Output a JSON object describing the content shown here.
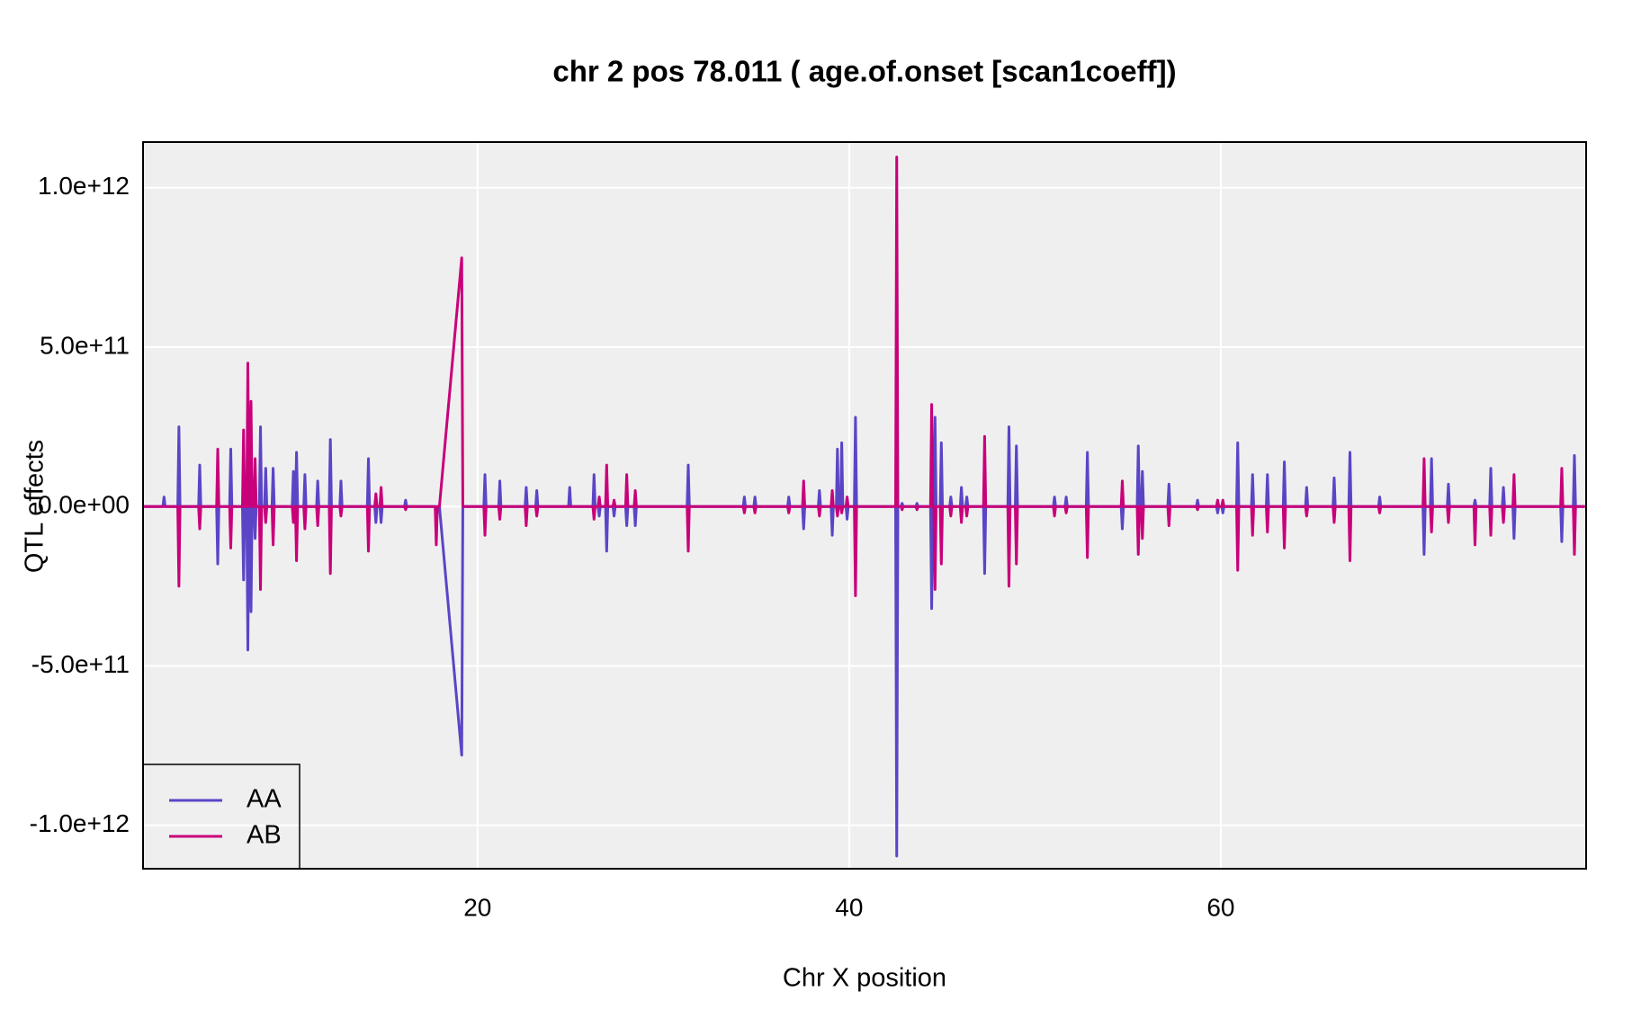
{
  "chart_data": {
    "type": "line",
    "title": "chr 2 pos 78.011 ( age.of.onset  [scan1coeff])",
    "xlabel": "Chr X position",
    "ylabel": "QTL effects",
    "xlim": [
      2,
      79.66
    ],
    "ylim": [
      -1136000000000.0,
      1143000000000.0
    ],
    "xticks": [
      20,
      40,
      60
    ],
    "yticks": [
      {
        "value": 1000000000000.0,
        "label": "1.0e+12"
      },
      {
        "value": 500000000000.0,
        "label": "5.0e+11"
      },
      {
        "value": 0,
        "label": "0.0e+00"
      },
      {
        "value": -500000000000.0,
        "label": "-5.0e+11"
      },
      {
        "value": -1000000000000.0,
        "label": "-1.0e+12"
      }
    ],
    "grid": true,
    "legend": "bottom-left",
    "x": [
      2.0,
      3.07,
      3.13,
      3.19,
      3.87,
      3.93,
      3.99,
      4.99,
      5.05,
      5.11,
      5.96,
      6.02,
      6.08,
      6.66,
      6.72,
      6.78,
      7.35,
      7.41,
      7.47,
      7.58,
      7.64,
      7.7,
      7.75,
      7.81,
      7.87,
      7.97,
      8.03,
      8.09,
      8.26,
      8.32,
      8.38,
      8.54,
      8.6,
      8.66,
      8.94,
      9.0,
      9.06,
      10.03,
      10.09,
      10.15,
      10.2,
      10.26,
      10.32,
      10.65,
      10.71,
      10.77,
      11.34,
      11.4,
      11.46,
      12.02,
      12.08,
      12.14,
      12.59,
      12.65,
      12.71,
      14.07,
      14.13,
      14.19,
      14.47,
      14.53,
      14.59,
      14.75,
      14.81,
      14.87,
      16.07,
      16.13,
      16.19,
      17.72,
      17.78,
      17.84,
      17.95,
      19.15,
      19.21,
      20.34,
      20.4,
      20.46,
      21.14,
      21.2,
      21.26,
      22.56,
      22.62,
      22.68,
      23.13,
      23.19,
      23.25,
      24.9,
      24.96,
      25.02,
      26.21,
      26.27,
      26.33,
      26.49,
      26.55,
      26.61,
      26.89,
      26.95,
      27.01,
      27.29,
      27.35,
      27.41,
      27.97,
      28.03,
      28.09,
      28.43,
      28.49,
      28.55,
      31.28,
      31.34,
      31.4,
      34.3,
      34.36,
      34.42,
      34.87,
      34.93,
      34.99,
      36.69,
      36.75,
      36.81,
      37.49,
      37.55,
      37.61,
      38.34,
      38.4,
      38.46,
      39.03,
      39.09,
      39.15,
      39.31,
      39.37,
      39.43,
      39.54,
      39.6,
      39.66,
      39.83,
      39.89,
      39.95,
      40.28,
      40.34,
      40.4,
      42.5,
      42.56,
      42.62,
      42.79,
      42.85,
      42.91,
      43.59,
      43.65,
      43.71,
      44.38,
      44.44,
      44.5,
      44.56,
      44.62,
      44.68,
      44.9,
      44.96,
      45.02,
      45.41,
      45.47,
      45.53,
      45.98,
      46.04,
      46.1,
      46.27,
      46.33,
      46.39,
      47.23,
      47.29,
      47.35,
      48.54,
      48.6,
      48.66,
      48.94,
      49.0,
      49.06,
      50.99,
      51.05,
      51.11,
      51.62,
      51.68,
      51.74,
      52.76,
      52.82,
      52.88,
      54.64,
      54.7,
      54.76,
      55.5,
      55.56,
      55.62,
      55.72,
      55.78,
      55.84,
      57.15,
      57.21,
      57.27,
      58.69,
      58.75,
      58.81,
      59.77,
      59.83,
      59.89,
      60.05,
      60.11,
      60.17,
      60.85,
      60.91,
      60.97,
      61.65,
      61.71,
      61.77,
      62.45,
      62.51,
      62.57,
      63.36,
      63.42,
      63.48,
      64.56,
      64.62,
      64.68,
      66.04,
      66.1,
      66.16,
      66.89,
      66.95,
      67.01,
      68.49,
      68.55,
      68.61,
      70.88,
      70.94,
      71.0,
      71.28,
      71.34,
      71.4,
      72.19,
      72.25,
      72.31,
      73.62,
      73.68,
      73.74,
      74.47,
      74.53,
      74.59,
      75.15,
      75.21,
      75.27,
      75.72,
      75.78,
      75.84,
      78.29,
      78.35,
      78.41,
      78.97,
      79.03,
      79.09,
      79.6
    ],
    "series": [
      {
        "name": "AA",
        "color": "#5b45c6",
        "values": [
          0,
          0,
          30000000000.0,
          0,
          0,
          250000000000.0,
          0,
          0,
          130000000000.0,
          0,
          0,
          -180000000000.0,
          0,
          0,
          180000000000.0,
          0,
          0,
          -230000000000.0,
          0,
          0,
          -450000000000.0,
          0,
          0,
          -330000000000.0,
          0,
          0,
          -100000000000.0,
          0,
          0,
          250000000000.0,
          0,
          0,
          120000000000.0,
          0,
          0,
          120000000000.0,
          0,
          0,
          110000000000.0,
          0,
          0,
          170000000000.0,
          0,
          0,
          100000000000.0,
          0,
          0,
          80000000000.0,
          0,
          0,
          210000000000.0,
          0,
          0,
          80000000000.0,
          0,
          0,
          150000000000.0,
          0,
          0,
          -50000000000.0,
          0,
          0,
          -50000000000.0,
          0,
          0,
          20000000000.0,
          0,
          0,
          0,
          0,
          0,
          -780000000000.0,
          0,
          0,
          100000000000.0,
          0,
          0,
          80000000000.0,
          0,
          0,
          60000000000.0,
          0,
          0,
          50000000000.0,
          0,
          0,
          60000000000.0,
          0,
          0,
          100000000000.0,
          0,
          0,
          -30000000000.0,
          0,
          0,
          -140000000000.0,
          0,
          0,
          -30000000000.0,
          0,
          0,
          -60000000000.0,
          0,
          0,
          -60000000000.0,
          0,
          0,
          130000000000.0,
          0,
          0,
          30000000000.0,
          0,
          0,
          30000000000.0,
          0,
          0,
          30000000000.0,
          0,
          0,
          -70000000000.0,
          0,
          0,
          50000000000.0,
          0,
          0,
          -90000000000.0,
          0,
          0,
          180000000000.0,
          0,
          0,
          200000000000.0,
          0,
          0,
          -40000000000.0,
          0,
          0,
          280000000000.0,
          0,
          0,
          -1096000000000.0,
          0,
          0,
          10000000000.0,
          0,
          0,
          10000000000.0,
          0,
          0,
          -320000000000.0,
          0,
          0,
          280000000000.0,
          0,
          0,
          200000000000.0,
          0,
          0,
          30000000000.0,
          0,
          0,
          60000000000.0,
          0,
          0,
          30000000000.0,
          0,
          0,
          -210000000000.0,
          0,
          0,
          250000000000.0,
          0,
          0,
          190000000000.0,
          0,
          0,
          30000000000.0,
          0,
          0,
          30000000000.0,
          0,
          0,
          170000000000.0,
          0,
          0,
          -70000000000.0,
          0,
          0,
          190000000000.0,
          0,
          0,
          110000000000.0,
          0,
          0,
          70000000000.0,
          0,
          0,
          20000000000.0,
          0,
          0,
          -20000000000.0,
          0,
          0,
          -20000000000.0,
          0,
          0,
          200000000000.0,
          0,
          0,
          100000000000.0,
          0,
          0,
          100000000000.0,
          0,
          0,
          140000000000.0,
          0,
          0,
          60000000000.0,
          0,
          0,
          90000000000.0,
          0,
          0,
          170000000000.0,
          0,
          0,
          30000000000.0,
          0,
          0,
          -150000000000.0,
          0,
          0,
          150000000000.0,
          0,
          0,
          70000000000.0,
          0,
          0,
          20000000000.0,
          0,
          0,
          120000000000.0,
          0,
          0,
          60000000000.0,
          0,
          0,
          -100000000000.0,
          0,
          0,
          -110000000000.0,
          0,
          0,
          160000000000.0,
          0,
          0
        ]
      },
      {
        "name": "AB",
        "color": "#c8007a",
        "values": [
          0,
          0,
          0,
          0,
          0,
          -250000000000.0,
          0,
          0,
          -70000000000.0,
          0,
          0,
          180000000000.0,
          0,
          0,
          -130000000000.0,
          0,
          0,
          240000000000.0,
          0,
          0,
          450000000000.0,
          0,
          0,
          330000000000.0,
          0,
          0,
          150000000000.0,
          0,
          0,
          -260000000000.0,
          0,
          0,
          -50000000000.0,
          0,
          0,
          -120000000000.0,
          0,
          0,
          -50000000000.0,
          0,
          0,
          -170000000000.0,
          0,
          0,
          -70000000000.0,
          0,
          0,
          -60000000000.0,
          0,
          0,
          -210000000000.0,
          0,
          0,
          -30000000000.0,
          0,
          0,
          -140000000000.0,
          0,
          0,
          40000000000.0,
          0,
          0,
          60000000000.0,
          0,
          0,
          -10000000000.0,
          0,
          0,
          -120000000000.0,
          0,
          0,
          780000000000.0,
          0,
          0,
          -90000000000.0,
          0,
          0,
          -40000000000.0,
          0,
          0,
          -60000000000.0,
          0,
          0,
          -30000000000.0,
          0,
          0,
          0,
          0,
          0,
          -40000000000.0,
          0,
          0,
          30000000000.0,
          0,
          0,
          130000000000.0,
          0,
          0,
          20000000000.0,
          0,
          0,
          100000000000.0,
          0,
          0,
          50000000000.0,
          0,
          0,
          -140000000000.0,
          0,
          0,
          -20000000000.0,
          0,
          0,
          -20000000000.0,
          0,
          0,
          -20000000000.0,
          0,
          0,
          80000000000.0,
          0,
          0,
          -30000000000.0,
          0,
          0,
          50000000000.0,
          0,
          0,
          -30000000000.0,
          0,
          0,
          -20000000000.0,
          0,
          0,
          30000000000.0,
          0,
          0,
          -280000000000.0,
          0,
          0,
          1096000000000.0,
          0,
          0,
          -10000000000.0,
          0,
          0,
          -10000000000.0,
          0,
          0,
          320000000000.0,
          0,
          0,
          -260000000000.0,
          0,
          0,
          -180000000000.0,
          0,
          0,
          -30000000000.0,
          0,
          0,
          -50000000000.0,
          0,
          0,
          -30000000000.0,
          0,
          0,
          220000000000.0,
          0,
          0,
          -250000000000.0,
          0,
          0,
          -180000000000.0,
          0,
          0,
          -30000000000.0,
          0,
          0,
          -20000000000.0,
          0,
          0,
          -160000000000.0,
          0,
          0,
          80000000000.0,
          0,
          0,
          -150000000000.0,
          0,
          0,
          -100000000000.0,
          0,
          0,
          -60000000000.0,
          0,
          0,
          -10000000000.0,
          0,
          0,
          20000000000.0,
          0,
          0,
          20000000000.0,
          0,
          0,
          -200000000000.0,
          0,
          0,
          -90000000000.0,
          0,
          0,
          -80000000000.0,
          0,
          0,
          -130000000000.0,
          0,
          0,
          -30000000000.0,
          0,
          0,
          -50000000000.0,
          0,
          0,
          -170000000000.0,
          0,
          0,
          -20000000000.0,
          0,
          0,
          150000000000.0,
          0,
          0,
          -80000000000.0,
          0,
          0,
          -50000000000.0,
          0,
          0,
          -120000000000.0,
          0,
          0,
          -90000000000.0,
          0,
          0,
          -50000000000.0,
          0,
          0,
          100000000000.0,
          0,
          0,
          120000000000.0,
          0,
          0,
          -150000000000.0,
          0,
          0
        ]
      }
    ]
  }
}
